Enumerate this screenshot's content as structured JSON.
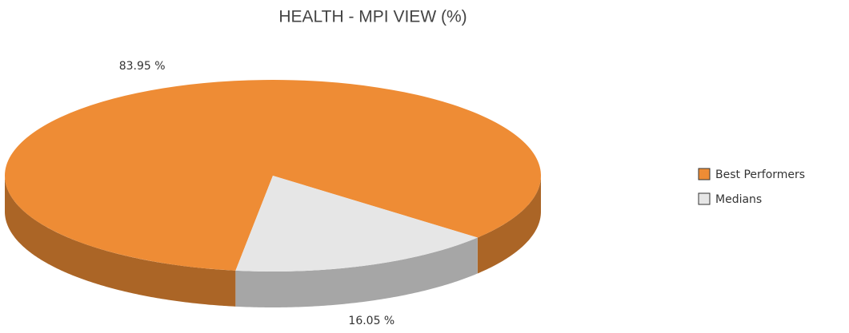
{
  "chart_data": {
    "type": "pie3d",
    "title": "HEALTH - MPI VIEW (%)",
    "categories": [
      "Best Performers",
      "Medians"
    ],
    "values": [
      83.95,
      16.05
    ],
    "value_labels": [
      "83.95 %",
      "16.05 %"
    ],
    "colors": [
      "#ee8c35",
      "#e6e6e6"
    ],
    "legend": "right"
  }
}
